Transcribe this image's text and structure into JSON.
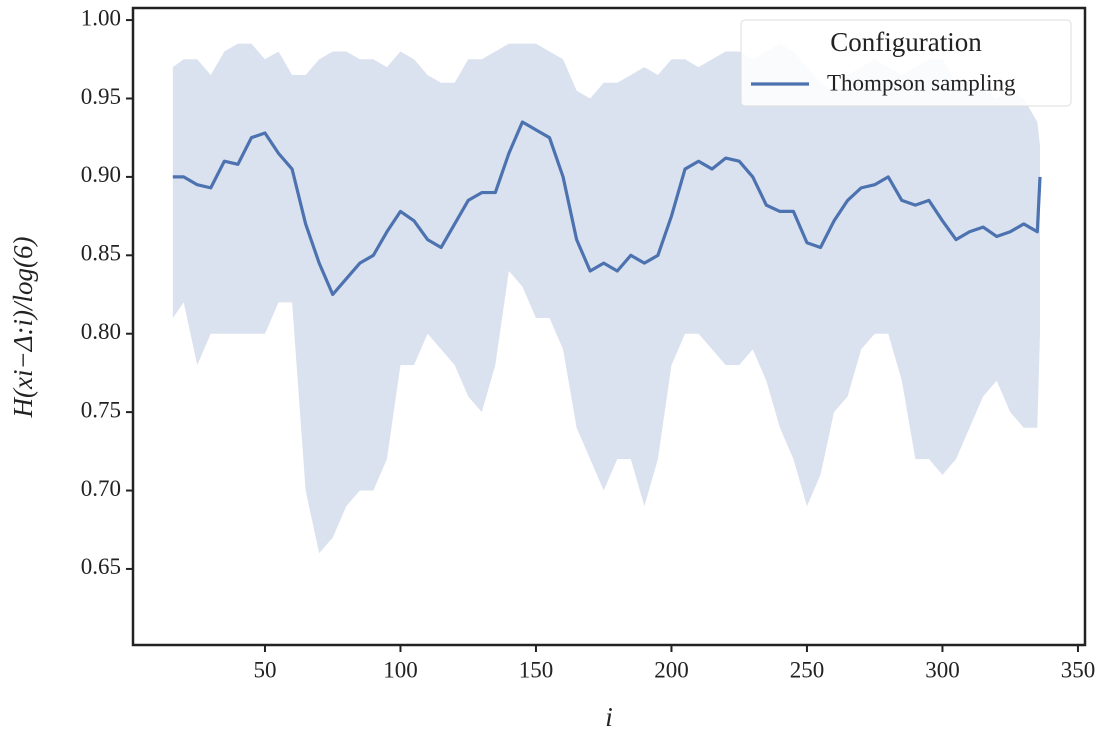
{
  "chart_data": {
    "type": "line",
    "xlabel": "i",
    "ylabel": "H(xi−Δ:i)/log(6)",
    "legend_title": "Configuration",
    "legend": "upper right",
    "x": [
      16,
      20,
      25,
      30,
      35,
      40,
      45,
      50,
      55,
      60,
      65,
      70,
      75,
      80,
      85,
      90,
      95,
      100,
      105,
      110,
      115,
      120,
      125,
      130,
      135,
      140,
      145,
      150,
      155,
      160,
      165,
      170,
      175,
      180,
      185,
      190,
      195,
      200,
      205,
      210,
      215,
      220,
      225,
      230,
      235,
      240,
      245,
      250,
      255,
      260,
      265,
      270,
      275,
      280,
      285,
      290,
      295,
      300,
      305,
      310,
      315,
      320,
      325,
      330,
      335,
      336
    ],
    "series": [
      {
        "name": "Thompson sampling",
        "color": "#4c72b0",
        "band_color": "#dbe2ef",
        "values": [
          0.9,
          0.9,
          0.895,
          0.893,
          0.91,
          0.908,
          0.925,
          0.928,
          0.915,
          0.905,
          0.87,
          0.845,
          0.825,
          0.835,
          0.845,
          0.85,
          0.865,
          0.878,
          0.872,
          0.86,
          0.855,
          0.87,
          0.885,
          0.89,
          0.89,
          0.915,
          0.935,
          0.93,
          0.925,
          0.9,
          0.86,
          0.84,
          0.845,
          0.84,
          0.85,
          0.845,
          0.85,
          0.875,
          0.905,
          0.91,
          0.905,
          0.912,
          0.91,
          0.9,
          0.882,
          0.878,
          0.878,
          0.858,
          0.855,
          0.872,
          0.885,
          0.893,
          0.895,
          0.9,
          0.885,
          0.882,
          0.885,
          0.872,
          0.86,
          0.865,
          0.868,
          0.862,
          0.865,
          0.87,
          0.865,
          0.9
        ],
        "upper": [
          0.97,
          0.975,
          0.975,
          0.965,
          0.98,
          0.985,
          0.985,
          0.975,
          0.98,
          0.965,
          0.965,
          0.975,
          0.98,
          0.98,
          0.975,
          0.975,
          0.97,
          0.98,
          0.975,
          0.965,
          0.96,
          0.96,
          0.975,
          0.975,
          0.98,
          0.985,
          0.985,
          0.985,
          0.98,
          0.975,
          0.955,
          0.95,
          0.96,
          0.96,
          0.965,
          0.97,
          0.965,
          0.975,
          0.975,
          0.97,
          0.975,
          0.98,
          0.98,
          0.975,
          0.98,
          0.985,
          0.98,
          0.97,
          0.96,
          0.955,
          0.965,
          0.97,
          0.975,
          0.97,
          0.965,
          0.97,
          0.975,
          0.975,
          0.96,
          0.96,
          0.955,
          0.95,
          0.955,
          0.95,
          0.935,
          0.92
        ],
        "lower": [
          0.81,
          0.82,
          0.78,
          0.8,
          0.8,
          0.8,
          0.8,
          0.8,
          0.82,
          0.82,
          0.7,
          0.66,
          0.67,
          0.69,
          0.7,
          0.7,
          0.72,
          0.78,
          0.78,
          0.8,
          0.79,
          0.78,
          0.76,
          0.75,
          0.78,
          0.84,
          0.83,
          0.81,
          0.81,
          0.79,
          0.74,
          0.72,
          0.7,
          0.72,
          0.72,
          0.69,
          0.72,
          0.78,
          0.8,
          0.8,
          0.79,
          0.78,
          0.78,
          0.79,
          0.77,
          0.74,
          0.72,
          0.69,
          0.71,
          0.75,
          0.76,
          0.79,
          0.8,
          0.8,
          0.77,
          0.72,
          0.72,
          0.71,
          0.72,
          0.74,
          0.76,
          0.77,
          0.75,
          0.74,
          0.74,
          0.8
        ]
      }
    ],
    "xlim": [
      1.3,
      352.6
    ],
    "xticks": [
      50,
      100,
      150,
      200,
      250,
      300,
      350
    ],
    "ylim": [
      0.6015,
      1.0077
    ],
    "yticks": [
      {
        "value": 0.65,
        "label": "0.65"
      },
      {
        "value": 0.7,
        "label": "0.70"
      },
      {
        "value": 0.75,
        "label": "0.75"
      },
      {
        "value": 0.8,
        "label": "0.80"
      },
      {
        "value": 0.85,
        "label": "0.85"
      },
      {
        "value": 0.9,
        "label": "0.90"
      },
      {
        "value": 0.95,
        "label": "0.95"
      },
      {
        "value": 1,
        "label": "1.00"
      }
    ]
  }
}
